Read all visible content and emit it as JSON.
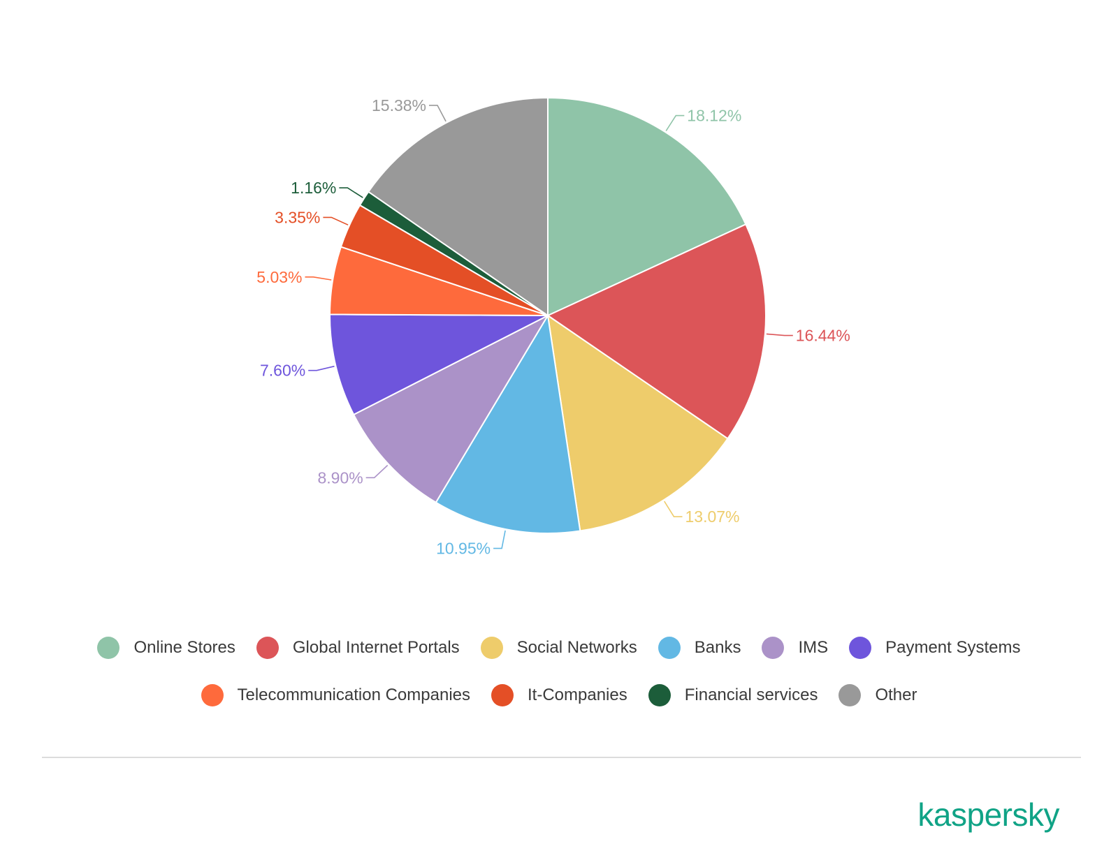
{
  "chart_data": {
    "type": "pie",
    "slices": [
      {
        "label": "Online Stores",
        "value": 18.12,
        "display": "18.12%",
        "color": "#8fc4a8"
      },
      {
        "label": "Global Internet Portals",
        "value": 16.44,
        "display": "16.44%",
        "color": "#dc5558"
      },
      {
        "label": "Social Networks",
        "value": 13.07,
        "display": "13.07%",
        "color": "#eecc6b"
      },
      {
        "label": "Banks",
        "value": 10.95,
        "display": "10.95%",
        "color": "#62b8e4"
      },
      {
        "label": "IMS",
        "value": 8.9,
        "display": "8.90%",
        "color": "#ab92c8"
      },
      {
        "label": "Payment Systems",
        "value": 7.6,
        "display": "7.60%",
        "color": "#6e55dc"
      },
      {
        "label": "Telecommunication Companies",
        "value": 5.03,
        "display": "5.03%",
        "color": "#fe6a3c"
      },
      {
        "label": "It-Companies",
        "value": 3.35,
        "display": "3.35%",
        "color": "#e44f26"
      },
      {
        "label": "Financial services",
        "value": 1.16,
        "display": "1.16%",
        "color": "#1c5d3a"
      },
      {
        "label": "Other",
        "value": 15.38,
        "display": "15.38%",
        "color": "#999999"
      }
    ],
    "start_angle": "12 o'clock, clockwise",
    "legend_position": "bottom"
  },
  "brand": {
    "name": "kaspersky",
    "color": "#10a386"
  }
}
